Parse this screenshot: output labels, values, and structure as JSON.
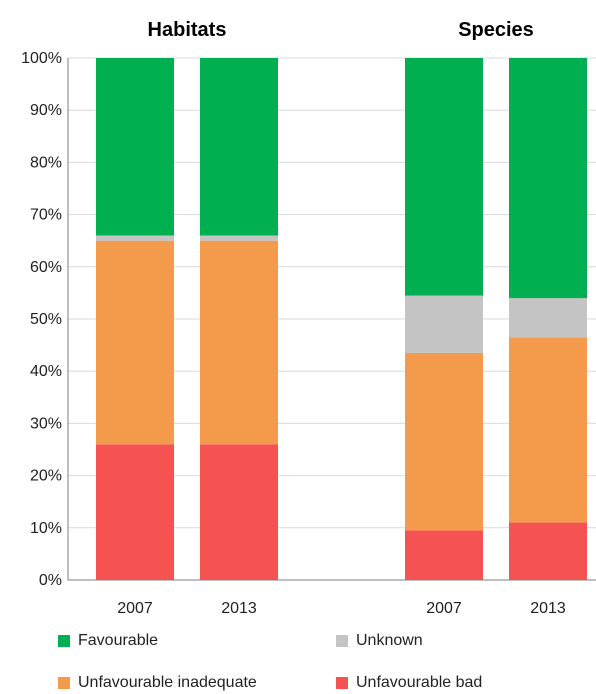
{
  "chart_data": {
    "type": "bar",
    "stacked": true,
    "percent": true,
    "ylim": [
      0,
      100
    ],
    "yticks": [
      "0%",
      "10%",
      "20%",
      "30%",
      "40%",
      "50%",
      "60%",
      "70%",
      "80%",
      "90%",
      "100%"
    ],
    "panels": [
      {
        "title": "Habitats",
        "categories": [
          "2007",
          "2013"
        ]
      },
      {
        "title": "Species",
        "categories": [
          "2007",
          "2013"
        ]
      }
    ],
    "series": [
      {
        "name": "Unfavourable bad",
        "color": "#f55252",
        "values": [
          26,
          26,
          9.5,
          11
        ]
      },
      {
        "name": "Unfavourable inadequate",
        "color": "#f39a4b",
        "values": [
          39,
          39,
          34,
          35.5
        ]
      },
      {
        "name": "Unknown",
        "color": "#c4c4c4",
        "values": [
          1,
          1,
          11,
          7.5
        ]
      },
      {
        "name": "Favourable",
        "color": "#00b050",
        "values": [
          34,
          34,
          45.5,
          46
        ]
      }
    ],
    "grid": true,
    "legend_position": "bottom"
  },
  "legend": {
    "items": [
      {
        "label": "Favourable",
        "color": "#00b050"
      },
      {
        "label": "Unknown",
        "color": "#c4c4c4"
      },
      {
        "label": "Unfavourable inadequate",
        "color": "#f39a4b"
      },
      {
        "label": "Unfavourable bad",
        "color": "#f55252"
      }
    ]
  }
}
